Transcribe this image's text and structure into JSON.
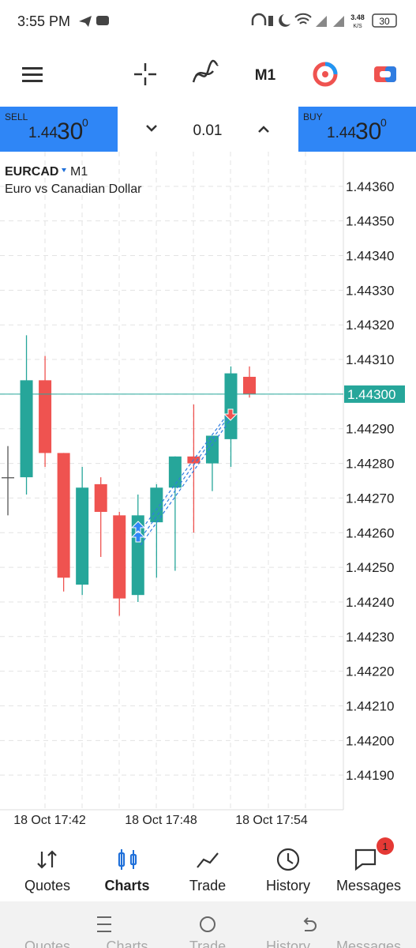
{
  "status_bar": {
    "time": "3:55 PM",
    "speed": "3.48",
    "speed_unit": "K/S",
    "battery": "30"
  },
  "toolbar": {
    "timeframe": "M1"
  },
  "trade_panel": {
    "sell_label": "SELL",
    "sell_price_main": "1.44",
    "sell_price_big": "30",
    "sell_price_sup": "0",
    "lot": "0.01",
    "buy_label": "BUY",
    "buy_price_main": "1.44",
    "buy_price_big": "30",
    "buy_price_sup": "0"
  },
  "chart": {
    "type": "candlestick",
    "symbol": "EURCAD",
    "timeframe": "M1",
    "description": "Euro vs Canadian Dollar",
    "up_color": "#26a69a",
    "down_color": "#ef5350",
    "ylim": [
      1.4418,
      1.4437
    ],
    "yticks": [
      {
        "value": 1.4436,
        "label": "1.44360"
      },
      {
        "value": 1.4435,
        "label": "1.44350"
      },
      {
        "value": 1.4434,
        "label": "1.44340"
      },
      {
        "value": 1.4433,
        "label": "1.44330"
      },
      {
        "value": 1.4432,
        "label": "1.44320"
      },
      {
        "value": 1.4431,
        "label": "1.44310"
      },
      {
        "value": 1.443,
        "label": "1.44300"
      },
      {
        "value": 1.4429,
        "label": "1.44290"
      },
      {
        "value": 1.4428,
        "label": "1.44280"
      },
      {
        "value": 1.4427,
        "label": "1.44270"
      },
      {
        "value": 1.4426,
        "label": "1.44260"
      },
      {
        "value": 1.4425,
        "label": "1.44250"
      },
      {
        "value": 1.4424,
        "label": "1.44240"
      },
      {
        "value": 1.4423,
        "label": "1.44230"
      },
      {
        "value": 1.4422,
        "label": "1.44220"
      },
      {
        "value": 1.4421,
        "label": "1.44210"
      },
      {
        "value": 1.442,
        "label": "1.44200"
      },
      {
        "value": 1.4419,
        "label": "1.44190"
      }
    ],
    "current_price": {
      "value": 1.443,
      "label": "1.44300"
    },
    "time_labels": [
      "18 Oct 17:42",
      "18 Oct 17:48",
      "18 Oct 17:54"
    ],
    "candles": [
      {
        "open": 1.44276,
        "high": 1.44285,
        "low": 1.44265,
        "close": 1.44276
      },
      {
        "open": 1.44276,
        "high": 1.44317,
        "low": 1.44271,
        "close": 1.44304
      },
      {
        "open": 1.44304,
        "high": 1.44311,
        "low": 1.44279,
        "close": 1.44283
      },
      {
        "open": 1.44283,
        "high": 1.44283,
        "low": 1.44243,
        "close": 1.44247
      },
      {
        "open": 1.44245,
        "high": 1.44279,
        "low": 1.44242,
        "close": 1.44273
      },
      {
        "open": 1.44274,
        "high": 1.44276,
        "low": 1.44253,
        "close": 1.44266
      },
      {
        "open": 1.44265,
        "high": 1.44266,
        "low": 1.44236,
        "close": 1.44241
      },
      {
        "open": 1.44242,
        "high": 1.44271,
        "low": 1.4424,
        "close": 1.44265
      },
      {
        "open": 1.44263,
        "high": 1.44274,
        "low": 1.44247,
        "close": 1.44273
      },
      {
        "open": 1.44273,
        "high": 1.44282,
        "low": 1.44249,
        "close": 1.44282
      },
      {
        "open": 1.44282,
        "high": 1.44297,
        "low": 1.4426,
        "close": 1.4428
      },
      {
        "open": 1.4428,
        "high": 1.44288,
        "low": 1.44272,
        "close": 1.44288
      },
      {
        "open": 1.44287,
        "high": 1.44308,
        "low": 1.44279,
        "close": 1.44306
      },
      {
        "open": 1.44305,
        "high": 1.44308,
        "low": 1.44299,
        "close": 1.443
      }
    ]
  },
  "bottom_nav": {
    "items": [
      "Quotes",
      "Charts",
      "Trade",
      "History",
      "Messages"
    ],
    "badge": "1"
  }
}
